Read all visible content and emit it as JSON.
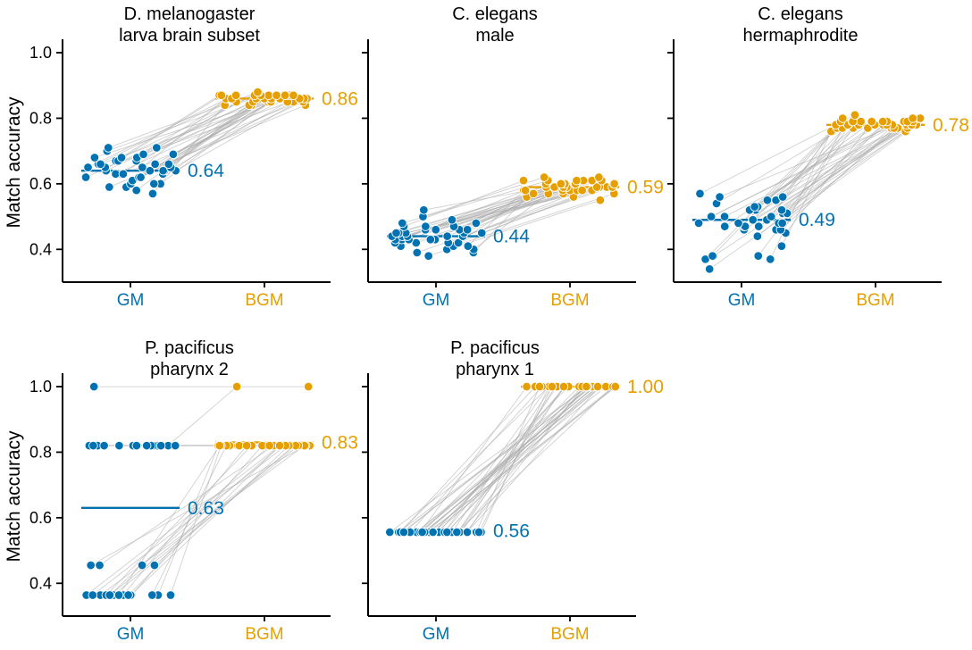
{
  "chart_data": [
    {
      "type": "scatter",
      "title_lines": [
        "D. melanogaster",
        "larva brain subset"
      ],
      "ylabel": "Match accuracy",
      "ylim": [
        0.3,
        1.03
      ],
      "yticks": [
        0.4,
        0.6,
        0.8,
        1.0
      ],
      "categories": [
        "GM",
        "BGM"
      ],
      "means": [
        0.64,
        0.86
      ],
      "mean_labels": [
        "0.64",
        "0.86"
      ],
      "series": [
        {
          "name": "GM",
          "values": [
            0.57,
            0.58,
            0.59,
            0.59,
            0.6,
            0.6,
            0.6,
            0.61,
            0.61,
            0.62,
            0.62,
            0.62,
            0.63,
            0.63,
            0.63,
            0.63,
            0.64,
            0.64,
            0.64,
            0.64,
            0.64,
            0.65,
            0.65,
            0.65,
            0.65,
            0.66,
            0.66,
            0.66,
            0.66,
            0.67,
            0.67,
            0.67,
            0.68,
            0.68,
            0.68,
            0.69,
            0.69,
            0.7,
            0.71,
            0.71
          ]
        },
        {
          "name": "BGM",
          "values": [
            0.84,
            0.84,
            0.84,
            0.84,
            0.85,
            0.85,
            0.85,
            0.85,
            0.85,
            0.85,
            0.85,
            0.85,
            0.85,
            0.85,
            0.86,
            0.86,
            0.86,
            0.86,
            0.86,
            0.86,
            0.86,
            0.86,
            0.86,
            0.86,
            0.86,
            0.86,
            0.86,
            0.87,
            0.87,
            0.87,
            0.87,
            0.87,
            0.87,
            0.87,
            0.87,
            0.87,
            0.87,
            0.87,
            0.88,
            0.88
          ]
        }
      ]
    },
    {
      "type": "scatter",
      "title_lines": [
        "C. elegans",
        "male"
      ],
      "ylabel": "",
      "ylim": [
        0.3,
        1.03
      ],
      "yticks": [
        0.4,
        0.6,
        0.8,
        1.0
      ],
      "categories": [
        "GM",
        "BGM"
      ],
      "means": [
        0.44,
        0.59
      ],
      "mean_labels": [
        "0.44",
        "0.59"
      ],
      "series": [
        {
          "name": "GM",
          "values": [
            0.38,
            0.39,
            0.39,
            0.4,
            0.4,
            0.41,
            0.41,
            0.41,
            0.42,
            0.42,
            0.42,
            0.42,
            0.43,
            0.43,
            0.43,
            0.43,
            0.43,
            0.44,
            0.44,
            0.44,
            0.44,
            0.44,
            0.44,
            0.45,
            0.45,
            0.45,
            0.45,
            0.45,
            0.46,
            0.46,
            0.46,
            0.46,
            0.47,
            0.47,
            0.47,
            0.48,
            0.48,
            0.49,
            0.5,
            0.52
          ]
        },
        {
          "name": "BGM",
          "values": [
            0.55,
            0.56,
            0.56,
            0.57,
            0.57,
            0.57,
            0.57,
            0.58,
            0.58,
            0.58,
            0.58,
            0.58,
            0.58,
            0.58,
            0.59,
            0.59,
            0.59,
            0.59,
            0.59,
            0.59,
            0.59,
            0.59,
            0.59,
            0.59,
            0.6,
            0.6,
            0.6,
            0.6,
            0.6,
            0.6,
            0.6,
            0.6,
            0.61,
            0.61,
            0.61,
            0.61,
            0.61,
            0.61,
            0.62,
            0.62
          ]
        }
      ]
    },
    {
      "type": "scatter",
      "title_lines": [
        "C. elegans",
        "hermaphrodite"
      ],
      "ylabel": "",
      "ylim": [
        0.3,
        1.03
      ],
      "yticks": [
        0.4,
        0.6,
        0.8,
        1.0
      ],
      "categories": [
        "GM",
        "BGM"
      ],
      "means": [
        0.49,
        0.78
      ],
      "mean_labels": [
        "0.49",
        "0.78"
      ],
      "series": [
        {
          "name": "GM",
          "values": [
            0.34,
            0.37,
            0.37,
            0.38,
            0.38,
            0.38,
            0.41,
            0.44,
            0.45,
            0.46,
            0.46,
            0.46,
            0.47,
            0.47,
            0.47,
            0.47,
            0.48,
            0.48,
            0.48,
            0.48,
            0.49,
            0.49,
            0.49,
            0.49,
            0.5,
            0.5,
            0.5,
            0.51,
            0.51,
            0.52,
            0.52,
            0.52,
            0.53,
            0.53,
            0.54,
            0.55,
            0.55,
            0.56,
            0.56,
            0.57
          ]
        },
        {
          "name": "BGM",
          "values": [
            0.76,
            0.76,
            0.76,
            0.76,
            0.77,
            0.77,
            0.77,
            0.77,
            0.77,
            0.77,
            0.77,
            0.77,
            0.78,
            0.78,
            0.78,
            0.78,
            0.78,
            0.78,
            0.78,
            0.78,
            0.78,
            0.78,
            0.78,
            0.78,
            0.78,
            0.79,
            0.79,
            0.79,
            0.79,
            0.79,
            0.79,
            0.79,
            0.79,
            0.79,
            0.79,
            0.8,
            0.8,
            0.8,
            0.8,
            0.81
          ]
        }
      ]
    },
    {
      "type": "scatter",
      "title_lines": [
        "P. pacificus",
        "pharynx 2"
      ],
      "ylabel": "Match accuracy",
      "ylim": [
        0.3,
        1.03
      ],
      "yticks": [
        0.4,
        0.6,
        0.8,
        1.0
      ],
      "categories": [
        "GM",
        "BGM"
      ],
      "means": [
        0.63,
        0.83
      ],
      "mean_labels": [
        "0.63",
        "0.83"
      ],
      "series": [
        {
          "name": "GM",
          "values": [
            1.0,
            0.82,
            0.82,
            0.82,
            0.82,
            0.82,
            0.82,
            0.82,
            0.82,
            0.82,
            0.82,
            0.82,
            0.82,
            0.82,
            0.82,
            0.82,
            0.82,
            0.82,
            0.82,
            0.82,
            0.82,
            0.455,
            0.455,
            0.455,
            0.455,
            0.364,
            0.364,
            0.364,
            0.364,
            0.364,
            0.364,
            0.364,
            0.364,
            0.364,
            0.364,
            0.364,
            0.364,
            0.364,
            0.364,
            0.364
          ]
        },
        {
          "name": "BGM",
          "values": [
            1.0,
            1.0,
            0.82,
            0.82,
            0.82,
            0.82,
            0.82,
            0.82,
            0.82,
            0.82,
            0.82,
            0.82,
            0.82,
            0.82,
            0.82,
            0.82,
            0.82,
            0.82,
            0.82,
            0.82,
            0.82,
            0.82,
            0.82,
            0.82,
            0.82,
            0.82,
            0.82,
            0.82,
            0.82,
            0.82,
            0.82,
            0.82,
            0.82,
            0.82,
            0.82,
            0.82,
            0.82,
            0.82,
            0.82,
            0.82
          ]
        }
      ]
    },
    {
      "type": "scatter",
      "title_lines": [
        "P. pacificus",
        "pharynx 1"
      ],
      "ylabel": "",
      "ylim": [
        0.3,
        1.03
      ],
      "yticks": [
        0.4,
        0.6,
        0.8,
        1.0
      ],
      "categories": [
        "GM",
        "BGM"
      ],
      "means": [
        0.56,
        1.0
      ],
      "mean_labels": [
        "0.56",
        "1.00"
      ],
      "series": [
        {
          "name": "GM",
          "values": [
            0.556,
            0.556,
            0.556,
            0.556,
            0.556,
            0.556,
            0.556,
            0.556,
            0.556,
            0.556,
            0.556,
            0.556,
            0.556,
            0.556,
            0.556,
            0.556,
            0.556,
            0.556,
            0.556,
            0.556,
            0.556,
            0.556,
            0.556,
            0.556,
            0.556,
            0.556,
            0.556,
            0.556,
            0.556,
            0.556,
            0.556,
            0.556,
            0.556,
            0.556,
            0.556,
            0.556,
            0.556,
            0.556,
            0.556,
            0.556
          ]
        },
        {
          "name": "BGM",
          "values": [
            1.0,
            1.0,
            1.0,
            1.0,
            1.0,
            1.0,
            1.0,
            1.0,
            1.0,
            1.0,
            1.0,
            1.0,
            1.0,
            1.0,
            1.0,
            1.0,
            1.0,
            1.0,
            1.0,
            1.0,
            1.0,
            1.0,
            1.0,
            1.0,
            1.0,
            1.0,
            1.0,
            1.0,
            1.0,
            1.0,
            1.0,
            1.0,
            1.0,
            1.0,
            1.0,
            1.0,
            1.0,
            1.0,
            1.0,
            1.0
          ]
        }
      ]
    }
  ],
  "colors": {
    "GM": "#0072b2",
    "BGM": "#e69f00",
    "pair_line": "#a9a9a9",
    "axis": "#000000"
  }
}
